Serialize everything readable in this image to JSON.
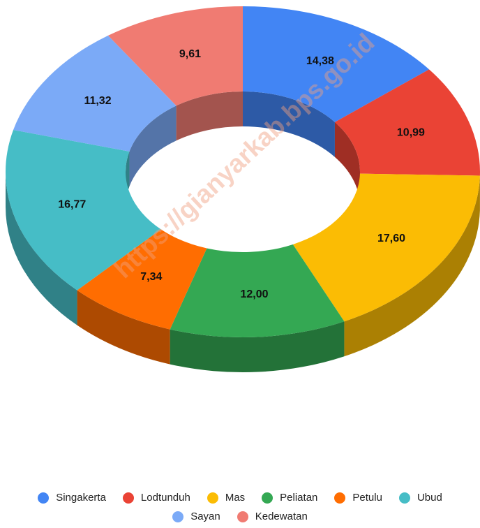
{
  "chart_data": {
    "type": "pie",
    "donut": true,
    "categories": [
      "Singakerta",
      "Lodtunduh",
      "Mas",
      "Peliatan",
      "Petulu",
      "Ubud",
      "Sayan",
      "Kedewatan"
    ],
    "values": [
      14.38,
      10.99,
      17.6,
      12.0,
      7.34,
      16.77,
      11.32,
      9.61
    ],
    "value_labels": [
      "14,38",
      "10,99",
      "17,60",
      "12,00",
      "7,34",
      "16,77",
      "11,32",
      "9,61"
    ],
    "colors": [
      "#4285f4",
      "#ea4335",
      "#fbbc04",
      "#34a853",
      "#ff6d01",
      "#46bdc6",
      "#7baaf7",
      "#f07b72"
    ],
    "watermark": "https://gianyarkab.bps.go.id"
  }
}
